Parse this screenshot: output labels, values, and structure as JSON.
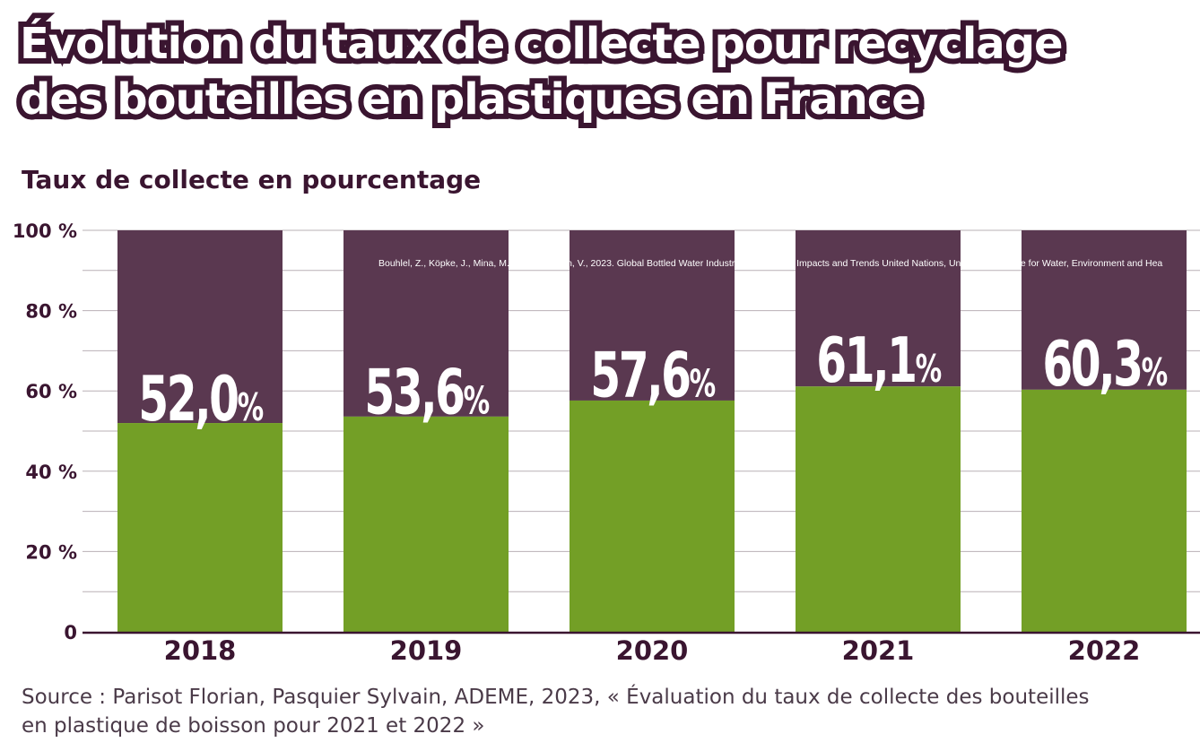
{
  "header": {
    "title_line1": "Évolution du taux de collecte pour recyclage",
    "title_line2": "des bouteilles en plastiques en France",
    "subtitle": "Taux de collecte en pourcentage"
  },
  "overlay_citation": "Bouhlel, Z., Köpke, J., Mina, M., and Smakhtin, V., 2023. Global Bottled Water Industry: A Review of Impacts and Trends United Nations, University Institute for Water, Environment and Hea",
  "source": {
    "line1": "Source : Parisot Florian, Pasquier Sylvain, ADEME, 2023, « Évaluation du taux de collecte des bouteilles",
    "line2": "en plastique de boisson pour 2021 et 2022 »"
  },
  "colors": {
    "collected": "#739f26",
    "remainder": "#5a3850",
    "dark": "#3a1530",
    "grid": "#b9b0b6"
  },
  "chart_data": {
    "type": "bar",
    "stacked": true,
    "categories": [
      "2018",
      "2019",
      "2020",
      "2021",
      "2022"
    ],
    "values": [
      52.0,
      53.6,
      57.6,
      61.1,
      60.3
    ],
    "value_labels": [
      "52,0",
      "53,6",
      "57,6",
      "61,1",
      "60,3"
    ],
    "value_suffix": "%",
    "total": 100,
    "ylim": [
      0,
      100
    ],
    "yticks": [
      0,
      20,
      40,
      60,
      80,
      100
    ],
    "ytick_labels": [
      "0",
      "20 %",
      "40 %",
      "60 %",
      "80 %",
      "100 %"
    ],
    "grid": true
  }
}
